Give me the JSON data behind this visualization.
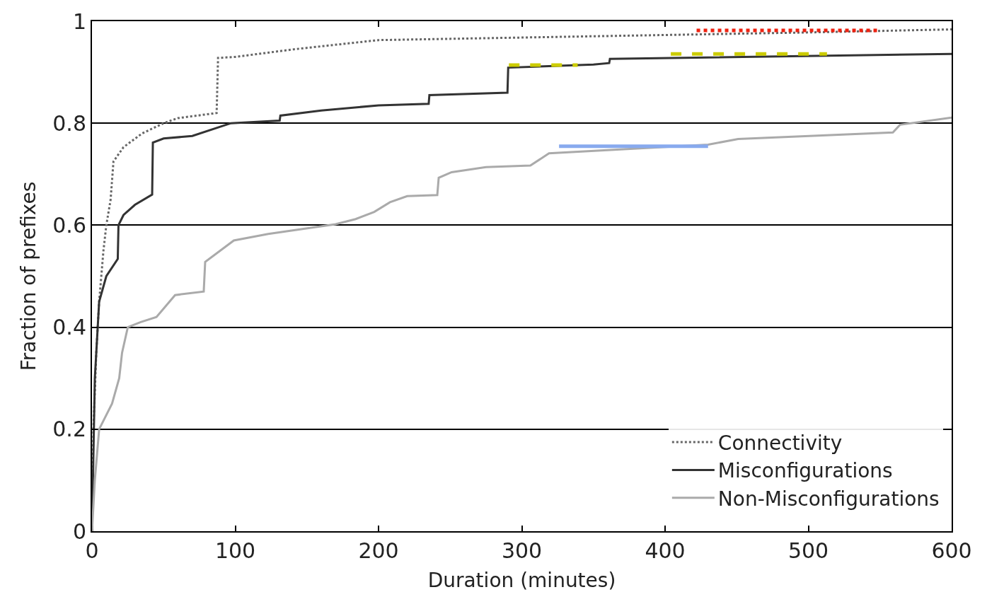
{
  "chart_data": {
    "type": "line",
    "xlabel": "Duration (minutes)",
    "ylabel": "Fraction of prefixes",
    "xlim": [
      0,
      600
    ],
    "xticks": [
      0,
      100,
      200,
      300,
      400,
      500,
      600
    ],
    "ylim": [
      0,
      1
    ],
    "yticks": [
      0,
      0.2,
      0.4,
      0.6,
      0.8,
      1
    ],
    "grid": "y",
    "legend": "bottom right",
    "marker": "none",
    "series": [
      {
        "name": "Connectivity",
        "color": "#666666",
        "line_style": "dotted",
        "x": [
          0,
          1,
          3,
          5,
          8,
          10,
          13,
          15,
          22,
          35,
          50,
          60,
          87,
          88,
          100,
          141,
          200,
          300,
          400,
          500,
          600
        ],
        "values": [
          0,
          0.2,
          0.35,
          0.45,
          0.55,
          0.6,
          0.65,
          0.725,
          0.753,
          0.78,
          0.8,
          0.81,
          0.82,
          0.928,
          0.93,
          0.945,
          0.963,
          0.968,
          0.973,
          0.978,
          0.984
        ]
      },
      {
        "name": "Misconfigurations",
        "color": "#333333",
        "line_style": "solid",
        "x": [
          0,
          2,
          5,
          10,
          18,
          18.5,
          22,
          30,
          42,
          42.5,
          50,
          70,
          97,
          131,
          131.5,
          160,
          200,
          235,
          235.5,
          290,
          290.5,
          350,
          361,
          361.5,
          600
        ],
        "values": [
          0,
          0.3,
          0.45,
          0.5,
          0.534,
          0.6,
          0.62,
          0.64,
          0.66,
          0.762,
          0.77,
          0.775,
          0.8,
          0.805,
          0.815,
          0.825,
          0.835,
          0.838,
          0.855,
          0.86,
          0.909,
          0.915,
          0.918,
          0.926,
          0.936
        ]
      },
      {
        "name": "Non-Misconfigurations",
        "color": "#aaaaaa",
        "line_style": "solid",
        "x": [
          0,
          2,
          5,
          14,
          19,
          21,
          25,
          34,
          45,
          58,
          78,
          79,
          99,
          123,
          170,
          184,
          197,
          208,
          220,
          241,
          242,
          251,
          275,
          306,
          319,
          430,
          451,
          559,
          564,
          600
        ],
        "values": [
          0,
          0.1,
          0.2,
          0.25,
          0.3,
          0.35,
          0.4,
          0.41,
          0.42,
          0.463,
          0.47,
          0.528,
          0.57,
          0.583,
          0.602,
          0.612,
          0.626,
          0.645,
          0.657,
          0.659,
          0.693,
          0.704,
          0.714,
          0.717,
          0.741,
          0.758,
          0.769,
          0.782,
          0.797,
          0.811
        ]
      },
      {
        "color": "#ee2211",
        "line_style": "dotted",
        "x": [
          422,
          549
        ],
        "values": [
          0.982,
          0.982
        ]
      },
      {
        "color": "#cccc00",
        "line_style": "dashed",
        "x": [
          291,
          339,
          340,
          404,
          513
        ],
        "values": [
          0.914,
          0.914,
          null,
          0.936,
          0.936
        ]
      },
      {
        "color": "#88aaee",
        "line_style": "solid",
        "x": [
          326,
          430
        ],
        "values": [
          0.755,
          0.755
        ]
      }
    ]
  }
}
